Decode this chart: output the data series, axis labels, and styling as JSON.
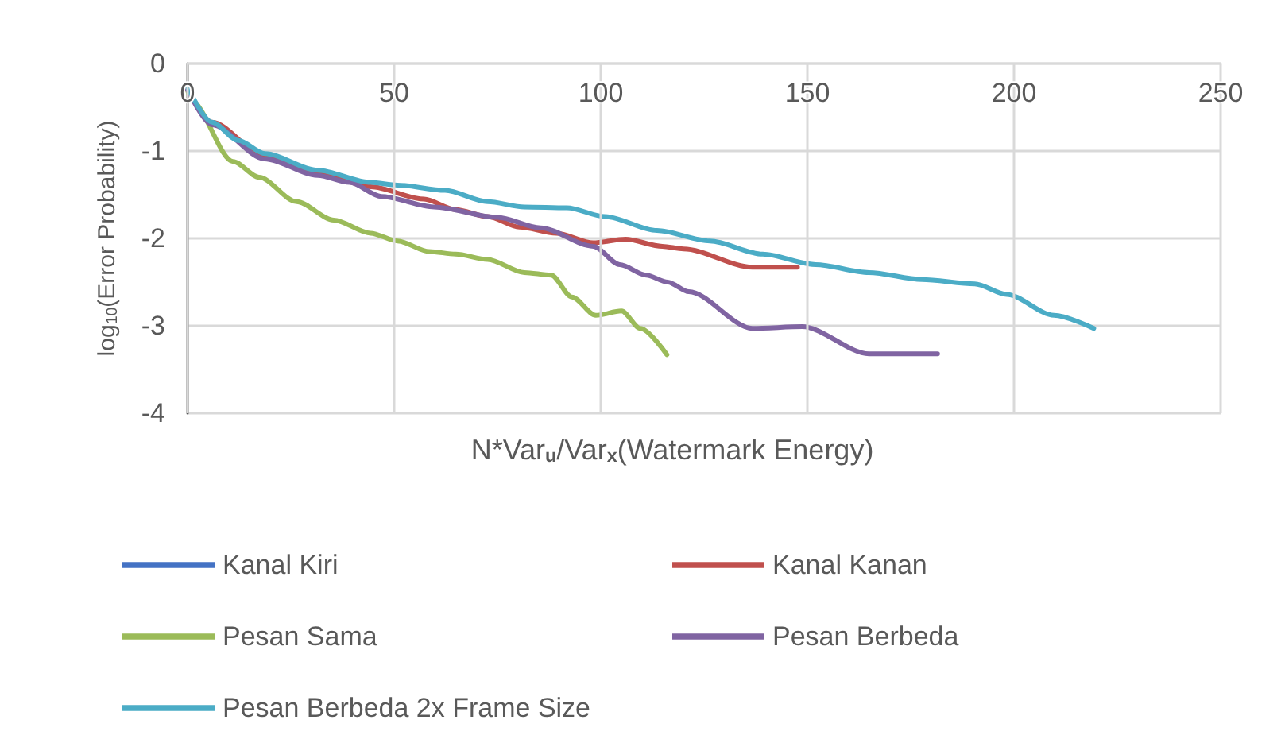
{
  "chart_data": {
    "type": "line",
    "xlabel": "N*Var$_{u}$/Var$_{x}$(Watermark Energy)",
    "ylabel": "log$_{10}$(Error Probability)",
    "xlim": [
      0,
      250
    ],
    "xticks": [
      0,
      50,
      100,
      150,
      200,
      250
    ],
    "ylim": [
      -4,
      0
    ],
    "yticks": [
      -4,
      -3,
      -2,
      -1,
      0
    ],
    "grid": true,
    "legend": "bottom",
    "marker": "none",
    "series": [
      {
        "name": "Kanal Kiri",
        "color": "#4472c4"
      },
      {
        "name": "Kanal Kanan",
        "color": "#c0504d",
        "x": [
          0,
          5.9,
          18.7,
          31.5,
          44.3,
          57.2,
          64.9,
          72.6,
          80.3,
          89.2,
          98.2,
          106,
          114.9,
          120,
          136.7,
          147.6
        ],
        "values": [
          -0.3,
          -0.67,
          -1.06,
          -1.24,
          -1.41,
          -1.55,
          -1.67,
          -1.75,
          -1.87,
          -1.94,
          -2.05,
          -2.01,
          -2.09,
          -2.12,
          -2.33,
          -2.33
        ]
      },
      {
        "name": "Pesan Sama",
        "color": "#9bbb59",
        "x": [
          0,
          0.8,
          11,
          17.3,
          26.4,
          35.4,
          44.3,
          50.8,
          58.5,
          64.9,
          72.6,
          81.5,
          88,
          93,
          98.8,
          105,
          109.6,
          116
        ],
        "values": [
          -0.3,
          -0.42,
          -1.12,
          -1.3,
          -1.58,
          -1.79,
          -1.94,
          -2.03,
          -2.15,
          -2.18,
          -2.24,
          -2.39,
          -2.42,
          -2.67,
          -2.88,
          -2.83,
          -3.03,
          -3.33
        ]
      },
      {
        "name": "Pesan Berbeda",
        "color": "#8064a2",
        "x": [
          0,
          5.9,
          18.7,
          31.5,
          39.2,
          46.9,
          59.7,
          75,
          85.4,
          98.2,
          104.6,
          111,
          116.2,
          121.3,
          136.7,
          148.8,
          164.9,
          181.5
        ],
        "values": [
          -0.3,
          -0.7,
          -1.09,
          -1.28,
          -1.36,
          -1.52,
          -1.64,
          -1.76,
          -1.88,
          -2.09,
          -2.3,
          -2.42,
          -2.5,
          -2.61,
          -3.03,
          -3.01,
          -3.32,
          -3.32
        ]
      },
      {
        "name": "Pesan Berbeda 2x Frame Size",
        "color": "#4bacc6",
        "x": [
          0,
          5.9,
          12.3,
          18.7,
          31.5,
          44.3,
          50.8,
          62.3,
          72.6,
          81.5,
          91.8,
          101,
          113.6,
          126.4,
          139.2,
          152,
          164.9,
          177.7,
          190.5,
          198.2,
          209.7,
          219.3
        ],
        "values": [
          -0.27,
          -0.67,
          -0.88,
          -1.03,
          -1.22,
          -1.36,
          -1.39,
          -1.45,
          -1.58,
          -1.64,
          -1.65,
          -1.75,
          -1.91,
          -2.03,
          -2.18,
          -2.3,
          -2.39,
          -2.47,
          -2.52,
          -2.64,
          -2.88,
          -3.03
        ]
      }
    ]
  }
}
